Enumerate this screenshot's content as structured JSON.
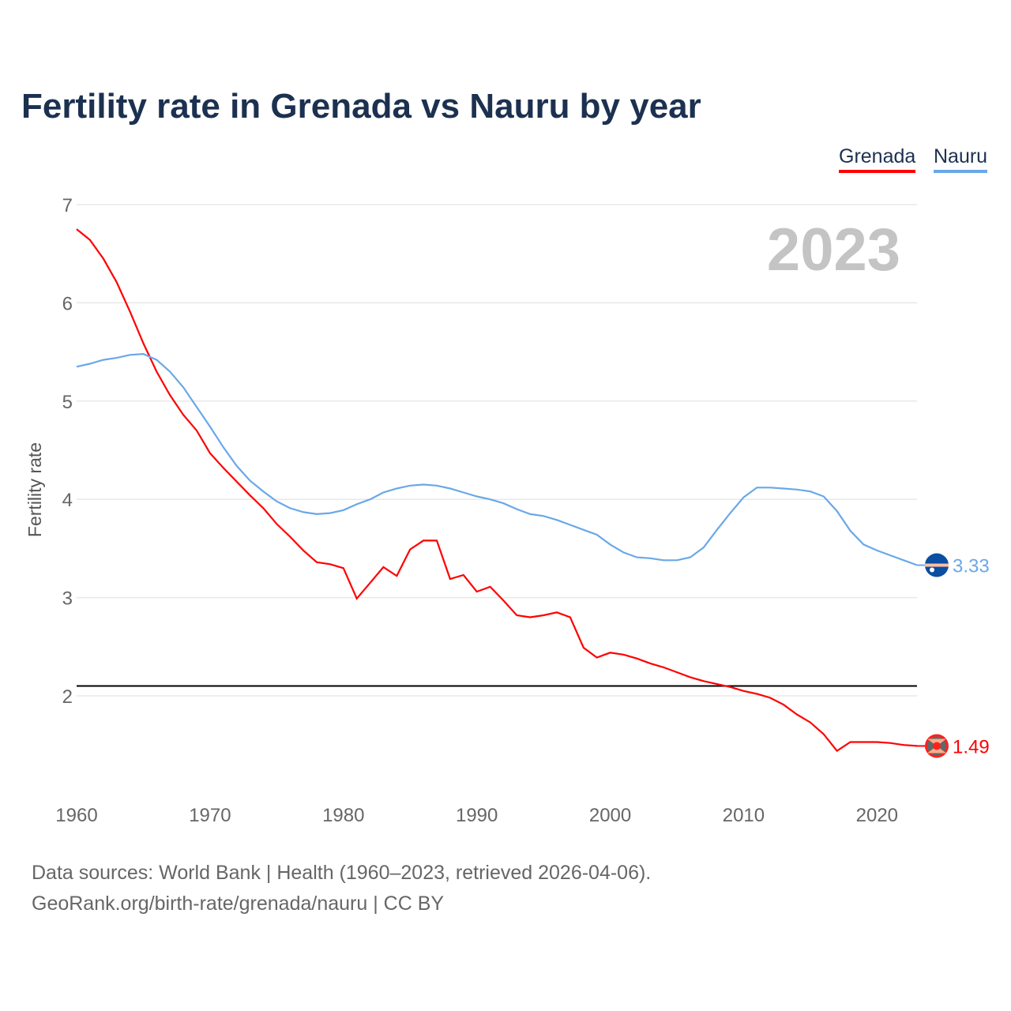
{
  "chart_data": {
    "type": "line",
    "title": "Fertility rate in Grenada vs Nauru by year",
    "ylabel": "Fertility rate",
    "xlabel": "",
    "year_label": "2023",
    "ylim": [
      1,
      7
    ],
    "xlim": [
      1960,
      2023
    ],
    "yticks": [
      2,
      3,
      4,
      5,
      6,
      7
    ],
    "xticks": [
      1960,
      1970,
      1980,
      1990,
      2000,
      2010,
      2020
    ],
    "reference_line": 2.1,
    "grid": true,
    "legend_position": "top-right",
    "x": [
      1960,
      1961,
      1962,
      1963,
      1964,
      1965,
      1966,
      1967,
      1968,
      1969,
      1970,
      1971,
      1972,
      1973,
      1974,
      1975,
      1976,
      1977,
      1978,
      1979,
      1980,
      1981,
      1982,
      1983,
      1984,
      1985,
      1986,
      1987,
      1988,
      1989,
      1990,
      1991,
      1992,
      1993,
      1994,
      1995,
      1996,
      1997,
      1998,
      1999,
      2000,
      2001,
      2002,
      2003,
      2004,
      2005,
      2006,
      2007,
      2008,
      2009,
      2010,
      2011,
      2012,
      2013,
      2014,
      2015,
      2016,
      2017,
      2018,
      2019,
      2020,
      2021,
      2022,
      2023
    ],
    "series": [
      {
        "name": "Grenada",
        "color": "#ff0000",
        "end_label": "1.49",
        "values": [
          6.75,
          6.64,
          6.45,
          6.21,
          5.91,
          5.59,
          5.3,
          5.06,
          4.86,
          4.7,
          4.47,
          4.32,
          4.18,
          4.04,
          3.91,
          3.75,
          3.62,
          3.48,
          3.36,
          3.34,
          3.3,
          2.99,
          3.15,
          3.31,
          3.22,
          3.49,
          3.58,
          3.58,
          3.19,
          3.23,
          3.06,
          3.11,
          2.97,
          2.82,
          2.8,
          2.82,
          2.85,
          2.8,
          2.49,
          2.39,
          2.44,
          2.42,
          2.38,
          2.33,
          2.29,
          2.24,
          2.19,
          2.15,
          2.12,
          2.09,
          2.05,
          2.02,
          1.98,
          1.91,
          1.81,
          1.73,
          1.61,
          1.44,
          1.53,
          1.53,
          1.53,
          1.52,
          1.5,
          1.49
        ]
      },
      {
        "name": "Nauru",
        "color": "#6aa8e8",
        "end_label": "3.33",
        "values": [
          5.35,
          5.38,
          5.42,
          5.44,
          5.47,
          5.48,
          5.42,
          5.3,
          5.14,
          4.94,
          4.74,
          4.53,
          4.34,
          4.19,
          4.08,
          3.98,
          3.91,
          3.87,
          3.85,
          3.86,
          3.89,
          3.95,
          4.0,
          4.07,
          4.11,
          4.14,
          4.15,
          4.14,
          4.11,
          4.07,
          4.03,
          4.0,
          3.96,
          3.9,
          3.85,
          3.83,
          3.79,
          3.74,
          3.69,
          3.64,
          3.54,
          3.46,
          3.41,
          3.4,
          3.38,
          3.38,
          3.41,
          3.51,
          3.69,
          3.86,
          4.02,
          4.12,
          4.12,
          4.11,
          4.1,
          4.08,
          4.03,
          3.88,
          3.68,
          3.54,
          3.48,
          3.43,
          3.38,
          3.33
        ]
      }
    ]
  },
  "footer": {
    "source_line": "Data sources: World Bank | Health (1960–2023, retrieved 2026-04-06).",
    "credit_line": "GeoRank.org/birth-rate/grenada/nauru | CC BY"
  }
}
